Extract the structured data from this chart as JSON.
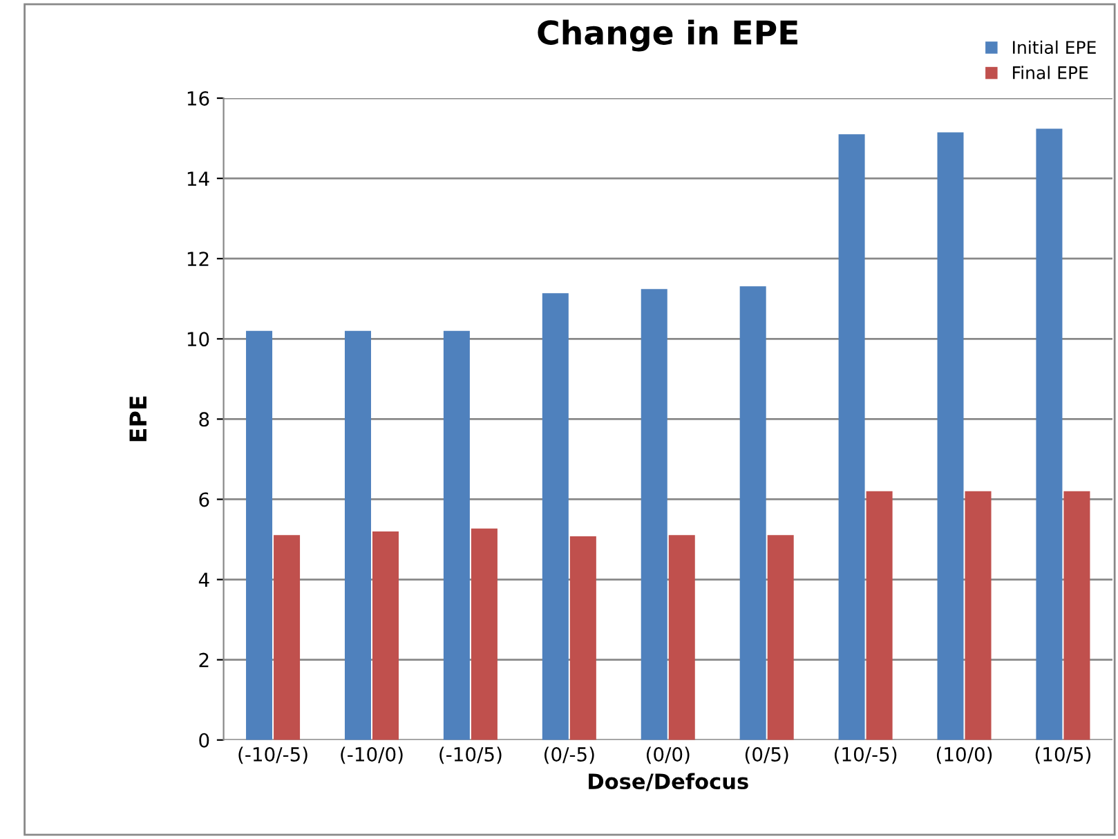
{
  "chart_data": {
    "type": "bar",
    "title": "Change in EPE",
    "xlabel": "Dose/Defocus",
    "ylabel": "EPE",
    "categories": [
      "(-10/-5)",
      "(-10/0)",
      "(-10/5)",
      "(0/-5)",
      "(0/0)",
      "(0/5)",
      "(10/-5)",
      "(10/0)",
      "(10/5)"
    ],
    "series": [
      {
        "name": "Initial EPE",
        "color": "#4f81bd",
        "values": [
          10.2,
          10.2,
          10.2,
          11.14,
          11.24,
          11.31,
          15.1,
          15.15,
          15.24
        ]
      },
      {
        "name": "Final EPE",
        "color": "#c0504d",
        "values": [
          5.11,
          5.2,
          5.27,
          5.08,
          5.11,
          5.11,
          6.2,
          6.2,
          6.2
        ]
      }
    ],
    "ylim": [
      0,
      16
    ],
    "yticks": [
      0,
      2,
      4,
      6,
      8,
      10,
      12,
      14,
      16
    ],
    "grid": "y",
    "legend": "top right"
  }
}
